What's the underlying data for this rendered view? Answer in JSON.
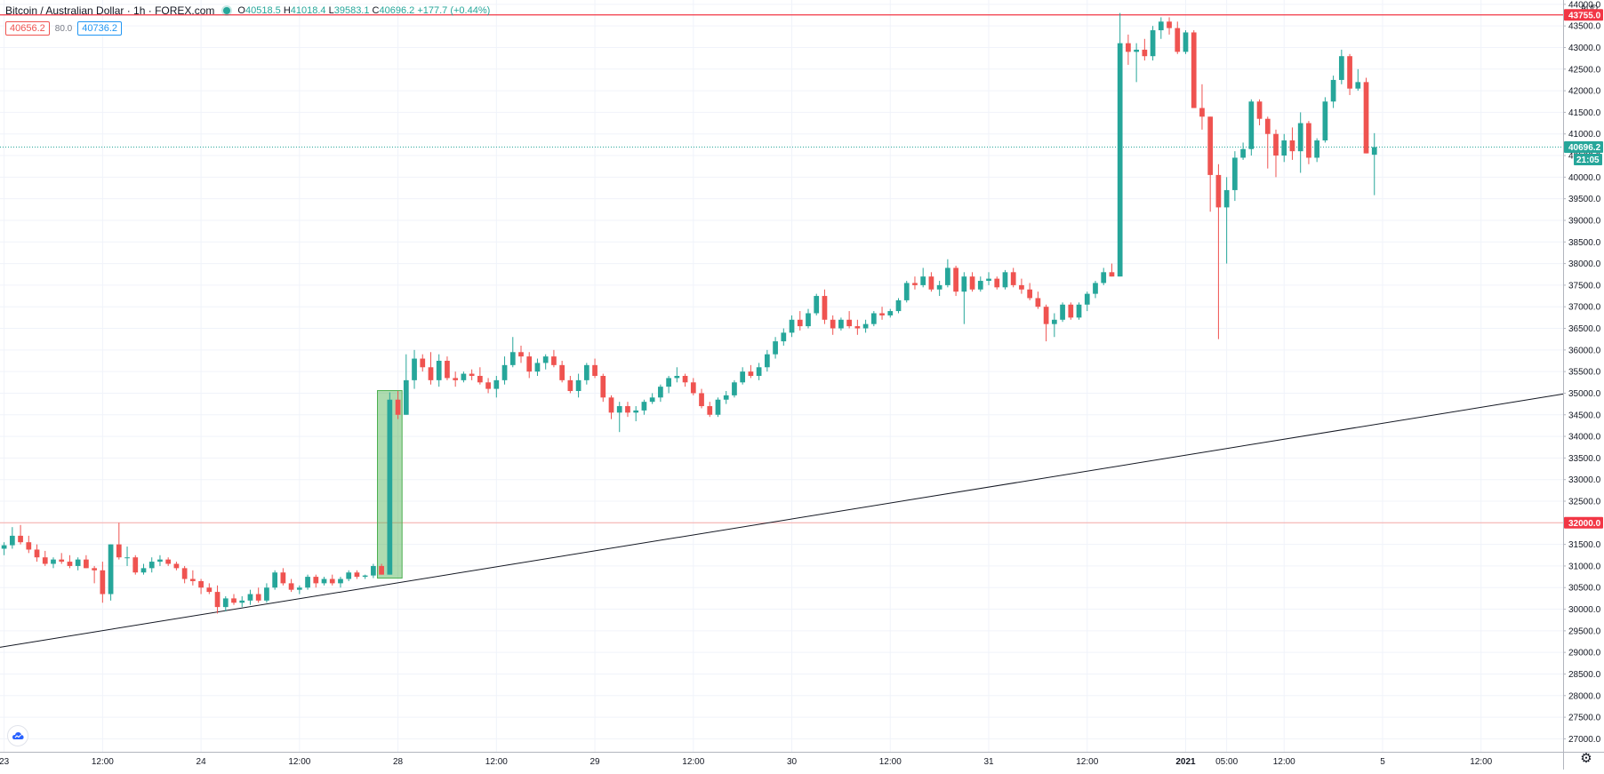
{
  "header": {
    "title": "Bitcoin / Australian Dollar · 1h · FOREX.com",
    "open_label": "O",
    "open": "40518.5",
    "high_label": "H",
    "high": "41018.4",
    "low_label": "L",
    "low": "39583.1",
    "close_label": "C",
    "close": "40696.2",
    "change": "+177.7 (+0.44%)",
    "currency": "AUD"
  },
  "quote": {
    "sell": "40656.2",
    "spread": "80.0",
    "buy": "40736.2"
  },
  "price_tags": {
    "resistance": "43755.0",
    "support": "32000.0",
    "last": "40696.2",
    "countdown": "21:05"
  },
  "colors": {
    "up": "#26a69a",
    "down": "#ef5350",
    "resistance_line": "#f23645",
    "support_line": "#f7a9a7",
    "trendline": "#131722",
    "last_price_line": "#26a69a",
    "highlight_box": "#4caf50"
  },
  "icons": {
    "logo": "tradingview-logo-icon",
    "settings": "gear-icon"
  },
  "chart_data": {
    "type": "candlestick",
    "timeframe": "1h",
    "ylim": [
      26700,
      44100
    ],
    "y_ticks": [
      27000,
      27500,
      28000,
      28500,
      29000,
      29500,
      30000,
      30500,
      31000,
      31500,
      32000,
      32500,
      33000,
      33500,
      34000,
      34500,
      35000,
      35500,
      36000,
      36500,
      37000,
      37500,
      38000,
      38500,
      39000,
      39500,
      40000,
      40500,
      41000,
      41500,
      42000,
      42500,
      43000,
      43500,
      44000
    ],
    "x_ticks": [
      {
        "label": "23",
        "bar": 0
      },
      {
        "label": "12:00",
        "bar": 12
      },
      {
        "label": "24",
        "bar": 24
      },
      {
        "label": "12:00",
        "bar": 36
      },
      {
        "label": "28",
        "bar": 48
      },
      {
        "label": "12:00",
        "bar": 60
      },
      {
        "label": "29",
        "bar": 72
      },
      {
        "label": "12:00",
        "bar": 84
      },
      {
        "label": "30",
        "bar": 96
      },
      {
        "label": "12:00",
        "bar": 108
      },
      {
        "label": "31",
        "bar": 120
      },
      {
        "label": "12:00",
        "bar": 132
      },
      {
        "label": "2021",
        "bar": 144
      },
      {
        "label": "05:00",
        "bar": 149
      },
      {
        "label": "12:00",
        "bar": 156
      },
      {
        "label": "5",
        "bar": 168
      },
      {
        "label": "12:00",
        "bar": 180
      }
    ],
    "bar_span": [
      -0.5,
      190
    ],
    "horizontal_lines": [
      {
        "name": "resistance",
        "price": 43755.0
      },
      {
        "name": "support",
        "price": 32000.0
      },
      {
        "name": "last-price",
        "price": 40696.2
      }
    ],
    "trendline": {
      "from": {
        "bar": -0.5,
        "price": 29120
      },
      "to": {
        "bar": 190,
        "price": 34980
      }
    },
    "highlight": {
      "bar_from": 45.5,
      "bar_to": 48.5,
      "price_from": 30720,
      "price_to": 35060
    },
    "candles": [
      [
        31400,
        31550,
        31250,
        31480
      ],
      [
        31480,
        31900,
        31400,
        31700
      ],
      [
        31700,
        31950,
        31500,
        31550
      ],
      [
        31550,
        31700,
        31300,
        31380
      ],
      [
        31380,
        31500,
        31100,
        31200
      ],
      [
        31200,
        31350,
        31000,
        31050
      ],
      [
        31050,
        31200,
        30950,
        31150
      ],
      [
        31150,
        31300,
        31050,
        31100
      ],
      [
        31100,
        31250,
        30950,
        31000
      ],
      [
        31000,
        31200,
        30900,
        31150
      ],
      [
        31150,
        31250,
        30950,
        30950
      ],
      [
        30950,
        31000,
        30600,
        30900
      ],
      [
        30900,
        31100,
        30150,
        30350
      ],
      [
        30350,
        31500,
        30200,
        31500
      ],
      [
        31500,
        32000,
        31150,
        31200
      ],
      [
        31200,
        31450,
        31000,
        31200
      ],
      [
        31200,
        31250,
        30800,
        30850
      ],
      [
        30850,
        31050,
        30800,
        30950
      ],
      [
        30950,
        31200,
        30850,
        31100
      ],
      [
        31100,
        31250,
        31000,
        31150
      ],
      [
        31150,
        31200,
        31000,
        31050
      ],
      [
        31050,
        31100,
        30900,
        30950
      ],
      [
        30950,
        31000,
        30600,
        30700
      ],
      [
        30700,
        30900,
        30550,
        30650
      ],
      [
        30650,
        30700,
        30350,
        30500
      ],
      [
        30500,
        30600,
        30350,
        30400
      ],
      [
        30400,
        30550,
        29900,
        30050
      ],
      [
        30050,
        30300,
        29950,
        30250
      ],
      [
        30250,
        30350,
        30100,
        30150
      ],
      [
        30150,
        30300,
        30050,
        30200
      ],
      [
        30200,
        30450,
        30100,
        30350
      ],
      [
        30350,
        30500,
        30150,
        30200
      ],
      [
        30200,
        30600,
        30150,
        30500
      ],
      [
        30500,
        30900,
        30450,
        30850
      ],
      [
        30850,
        30950,
        30550,
        30600
      ],
      [
        30600,
        30700,
        30400,
        30450
      ],
      [
        30450,
        30550,
        30350,
        30500
      ],
      [
        30500,
        30800,
        30450,
        30750
      ],
      [
        30750,
        30800,
        30500,
        30600
      ],
      [
        30600,
        30750,
        30550,
        30700
      ],
      [
        30700,
        30800,
        30550,
        30600
      ],
      [
        30600,
        30750,
        30500,
        30700
      ],
      [
        30700,
        30900,
        30650,
        30850
      ],
      [
        30850,
        30900,
        30700,
        30750
      ],
      [
        30750,
        30800,
        30700,
        30780
      ],
      [
        30780,
        31050,
        30720,
        31000
      ],
      [
        31000,
        31050,
        30800,
        30800
      ],
      [
        30800,
        35020,
        30800,
        34850
      ],
      [
        34850,
        35050,
        34400,
        34500
      ],
      [
        34500,
        35900,
        34500,
        35300
      ],
      [
        35300,
        36000,
        35100,
        35800
      ],
      [
        35800,
        35900,
        35500,
        35600
      ],
      [
        35600,
        35950,
        35200,
        35300
      ],
      [
        35300,
        35900,
        35150,
        35750
      ],
      [
        35750,
        35850,
        35300,
        35350
      ],
      [
        35350,
        35500,
        35150,
        35300
      ],
      [
        35300,
        35500,
        35250,
        35450
      ],
      [
        35450,
        35550,
        35300,
        35400
      ],
      [
        35400,
        35600,
        35200,
        35250
      ],
      [
        35250,
        35350,
        35000,
        35100
      ],
      [
        35100,
        35400,
        34900,
        35300
      ],
      [
        35300,
        35850,
        35200,
        35650
      ],
      [
        35650,
        36300,
        35600,
        35950
      ],
      [
        35950,
        36100,
        35700,
        35850
      ],
      [
        35850,
        35950,
        35350,
        35500
      ],
      [
        35500,
        35800,
        35400,
        35700
      ],
      [
        35700,
        35900,
        35550,
        35850
      ],
      [
        35850,
        36000,
        35600,
        35650
      ],
      [
        35650,
        35750,
        35250,
        35300
      ],
      [
        35300,
        35400,
        35000,
        35050
      ],
      [
        35050,
        35450,
        34900,
        35300
      ],
      [
        35300,
        35700,
        35200,
        35650
      ],
      [
        35650,
        35800,
        35350,
        35400
      ],
      [
        35400,
        35450,
        34800,
        34900
      ],
      [
        34900,
        34950,
        34400,
        34550
      ],
      [
        34550,
        34800,
        34100,
        34700
      ],
      [
        34700,
        34800,
        34450,
        34550
      ],
      [
        34550,
        34700,
        34350,
        34600
      ],
      [
        34600,
        34850,
        34500,
        34800
      ],
      [
        34800,
        35000,
        34750,
        34900
      ],
      [
        34900,
        35200,
        34800,
        35150
      ],
      [
        35150,
        35400,
        35000,
        35350
      ],
      [
        35350,
        35600,
        35250,
        35400
      ],
      [
        35400,
        35450,
        35150,
        35250
      ],
      [
        35250,
        35350,
        34950,
        35000
      ],
      [
        35000,
        35100,
        34650,
        34700
      ],
      [
        34700,
        34800,
        34450,
        34500
      ],
      [
        34500,
        34900,
        34450,
        34850
      ],
      [
        34850,
        35050,
        34750,
        34950
      ],
      [
        34950,
        35300,
        34900,
        35250
      ],
      [
        35250,
        35600,
        35200,
        35500
      ],
      [
        35500,
        35650,
        35350,
        35400
      ],
      [
        35400,
        35700,
        35300,
        35600
      ],
      [
        35600,
        36000,
        35500,
        35900
      ],
      [
        35900,
        36300,
        35800,
        36200
      ],
      [
        36200,
        36500,
        36100,
        36400
      ],
      [
        36400,
        36800,
        36300,
        36700
      ],
      [
        36700,
        36900,
        36450,
        36550
      ],
      [
        36550,
        36950,
        36500,
        36850
      ],
      [
        36850,
        37300,
        36800,
        37250
      ],
      [
        37250,
        37400,
        36600,
        36700
      ],
      [
        36700,
        36800,
        36350,
        36500
      ],
      [
        36500,
        36750,
        36450,
        36700
      ],
      [
        36700,
        36900,
        36500,
        36550
      ],
      [
        36550,
        36700,
        36350,
        36500
      ],
      [
        36500,
        36700,
        36400,
        36600
      ],
      [
        36600,
        36900,
        36550,
        36850
      ],
      [
        36850,
        37000,
        36700,
        36800
      ],
      [
        36800,
        36950,
        36750,
        36900
      ],
      [
        36900,
        37200,
        36850,
        37150
      ],
      [
        37150,
        37600,
        37100,
        37550
      ],
      [
        37550,
        37700,
        37400,
        37500
      ],
      [
        37500,
        37900,
        37450,
        37700
      ],
      [
        37700,
        37800,
        37350,
        37400
      ],
      [
        37400,
        37600,
        37250,
        37500
      ],
      [
        37500,
        38100,
        37450,
        37900
      ],
      [
        37900,
        37950,
        37250,
        37350
      ],
      [
        37350,
        37800,
        36600,
        37700
      ],
      [
        37700,
        37800,
        37350,
        37400
      ],
      [
        37400,
        37700,
        37350,
        37600
      ],
      [
        37600,
        37800,
        37500,
        37650
      ],
      [
        37650,
        37700,
        37400,
        37450
      ],
      [
        37450,
        37850,
        37400,
        37800
      ],
      [
        37800,
        37900,
        37450,
        37500
      ],
      [
        37500,
        37650,
        37300,
        37400
      ],
      [
        37400,
        37550,
        37150,
        37200
      ],
      [
        37200,
        37350,
        36950,
        37000
      ],
      [
        37000,
        37050,
        36200,
        36600
      ],
      [
        36600,
        36850,
        36300,
        36700
      ],
      [
        36700,
        37100,
        36650,
        37050
      ],
      [
        37050,
        37100,
        36700,
        36750
      ],
      [
        36750,
        37100,
        36700,
        37050
      ],
      [
        37050,
        37350,
        36900,
        37300
      ],
      [
        37300,
        37600,
        37200,
        37550
      ],
      [
        37550,
        37900,
        37500,
        37800
      ],
      [
        37800,
        38000,
        37700,
        37700
      ],
      [
        37700,
        43800,
        37700,
        43100
      ],
      [
        43100,
        43300,
        42600,
        42900
      ],
      [
        42900,
        43100,
        42200,
        42950
      ],
      [
        42950,
        43200,
        42700,
        42800
      ],
      [
        42800,
        43500,
        42700,
        43400
      ],
      [
        43400,
        43700,
        43200,
        43600
      ],
      [
        43600,
        43700,
        43300,
        43450
      ],
      [
        43450,
        43600,
        42850,
        42900
      ],
      [
        42900,
        43400,
        42850,
        43350
      ],
      [
        43350,
        43400,
        41600,
        41600
      ],
      [
        41600,
        42150,
        41100,
        41400
      ],
      [
        41400,
        41400,
        39200,
        40050
      ],
      [
        40050,
        40300,
        36250,
        39300
      ],
      [
        39300,
        40000,
        38000,
        39700
      ],
      [
        39700,
        40600,
        39450,
        40450
      ],
      [
        40450,
        40800,
        40400,
        40650
      ],
      [
        40650,
        41800,
        40500,
        41750
      ],
      [
        41750,
        41800,
        41200,
        41350
      ],
      [
        41350,
        41400,
        40200,
        41000
      ],
      [
        41000,
        41100,
        40000,
        40500
      ],
      [
        40500,
        41000,
        40350,
        40850
      ],
      [
        40850,
        41150,
        40400,
        40600
      ],
      [
        40600,
        41500,
        40100,
        41250
      ],
      [
        41250,
        41300,
        40300,
        40450
      ],
      [
        40450,
        40900,
        40350,
        40850
      ],
      [
        40850,
        41850,
        40800,
        41750
      ],
      [
        41750,
        42350,
        41600,
        42250
      ],
      [
        42250,
        42950,
        42150,
        42800
      ],
      [
        42800,
        42850,
        41900,
        42050
      ],
      [
        42050,
        42500,
        42000,
        42200
      ],
      [
        42200,
        42300,
        40550,
        40550
      ],
      [
        40518.5,
        41018.4,
        39583.1,
        40696.2
      ]
    ]
  }
}
